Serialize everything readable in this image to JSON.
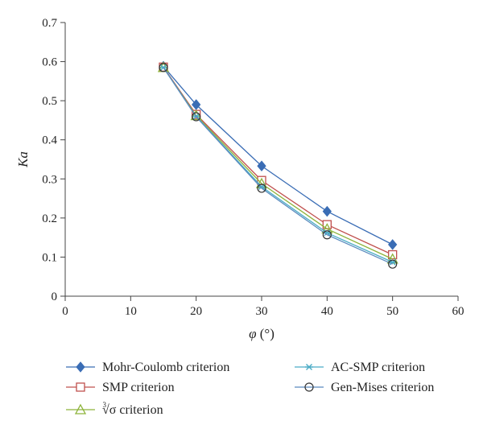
{
  "chart_data": {
    "type": "line",
    "title": "",
    "xlabel": "φ",
    "xlabel_unit": "(°)",
    "ylabel": "Ka",
    "xlim": [
      0,
      60
    ],
    "ylim": [
      0,
      0.7
    ],
    "xticks": [
      0,
      10,
      20,
      30,
      40,
      50,
      60
    ],
    "yticks": [
      0,
      0.1,
      0.2,
      0.3,
      0.4,
      0.5,
      0.6,
      0.7
    ],
    "xtick_labels": [
      "0",
      "10",
      "20",
      "30",
      "40",
      "50",
      "60"
    ],
    "ytick_labels": [
      "0",
      "0.1",
      "0.2",
      "0.3",
      "0.4",
      "0.5",
      "0.6",
      "0.7"
    ],
    "grid": false,
    "legend_position": "bottom",
    "x": [
      15,
      20,
      30,
      40,
      50
    ],
    "series": [
      {
        "name": "Mohr-Coulomb criterion",
        "marker": "diamond",
        "color": "#3a6db5",
        "values": [
          0.588,
          0.49,
          0.333,
          0.217,
          0.132
        ]
      },
      {
        "name": "SMP criterion",
        "marker": "square",
        "color": "#c0504d",
        "values": [
          0.586,
          0.465,
          0.296,
          0.183,
          0.106
        ]
      },
      {
        "name": "∛σ criterion",
        "name_prefix": "3",
        "name_root": "√σ",
        "name_suffix": " criterion",
        "marker": "triangle",
        "color": "#8db33a",
        "values": [
          0.585,
          0.462,
          0.288,
          0.172,
          0.095
        ]
      },
      {
        "name": "AC-SMP criterion",
        "marker": "asterisk",
        "color": "#4bacc6",
        "values": [
          0.585,
          0.46,
          0.28,
          0.162,
          0.087
        ]
      },
      {
        "name": "Gen-Mises criterion",
        "marker": "circle",
        "color": "#5b8bbf",
        "values": [
          0.585,
          0.459,
          0.276,
          0.157,
          0.082
        ]
      }
    ]
  }
}
